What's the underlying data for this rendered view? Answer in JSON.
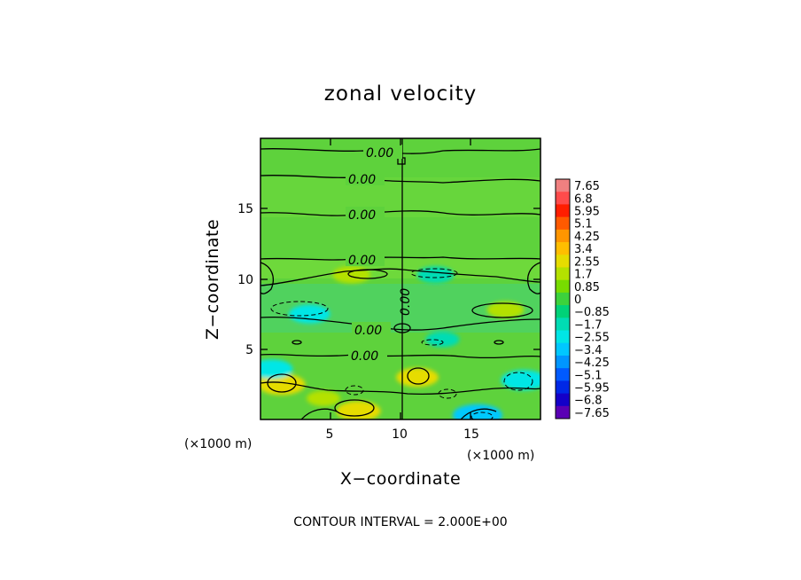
{
  "chart_data": {
    "type": "heatmap",
    "title": "zonal velocity",
    "xlabel": "X−coordinate",
    "ylabel": "Z−coordinate",
    "x_unit": "(×1000 m)",
    "y_unit": "(×1000 m)",
    "xlim": [
      0,
      20
    ],
    "ylim": [
      0,
      20
    ],
    "x_ticks": [
      5,
      10,
      15
    ],
    "y_ticks": [
      5,
      10,
      15
    ],
    "contour_interval_text": "CONTOUR INTERVAL = 2.000E+00",
    "contour_labels": [
      "0.00",
      "0.00",
      "0.00",
      "0.00",
      "0.00",
      "0.00",
      "0.00"
    ],
    "colorbar": {
      "labels": [
        "7.65",
        "6.8",
        "5.95",
        "5.1",
        "4.25",
        "3.4",
        "2.55",
        "1.7",
        "0.85",
        "0",
        "−0.85",
        "−1.7",
        "−2.55",
        "−3.4",
        "−4.25",
        "−5.1",
        "−5.95",
        "−6.8",
        "−7.65"
      ],
      "colors": [
        "#f08080",
        "#ff4b4b",
        "#ff1e00",
        "#ff5a00",
        "#ff9600",
        "#ffbe00",
        "#e6dc00",
        "#b4e100",
        "#78dc00",
        "#3cd23c",
        "#00d278",
        "#00dcb4",
        "#00e6e6",
        "#00c8ff",
        "#0096ff",
        "#005aff",
        "#0028e6",
        "#1400c8",
        "#5a00b4"
      ]
    },
    "features": [
      {
        "x": 1.5,
        "z": 2.5,
        "value": 2.8
      },
      {
        "x": 7.0,
        "z": 0.6,
        "value": 2.5
      },
      {
        "x": 11.2,
        "z": 3.0,
        "value": 2.3
      },
      {
        "x": 6.5,
        "z": 10.3,
        "value": 1.9
      },
      {
        "x": 17.5,
        "z": 7.8,
        "value": 1.8
      },
      {
        "x": 3.5,
        "z": 7.5,
        "value": -2.2
      },
      {
        "x": 12.5,
        "z": 10.3,
        "value": -1.8
      },
      {
        "x": 18.8,
        "z": 2.8,
        "value": -2.6
      },
      {
        "x": 0.8,
        "z": 3.6,
        "value": -2.3
      },
      {
        "x": 15.5,
        "z": 0.3,
        "value": -3.0
      },
      {
        "x": 13.0,
        "z": 5.7,
        "value": -1.5
      },
      {
        "x": 4.5,
        "z": 1.5,
        "value": 1.5
      }
    ]
  }
}
